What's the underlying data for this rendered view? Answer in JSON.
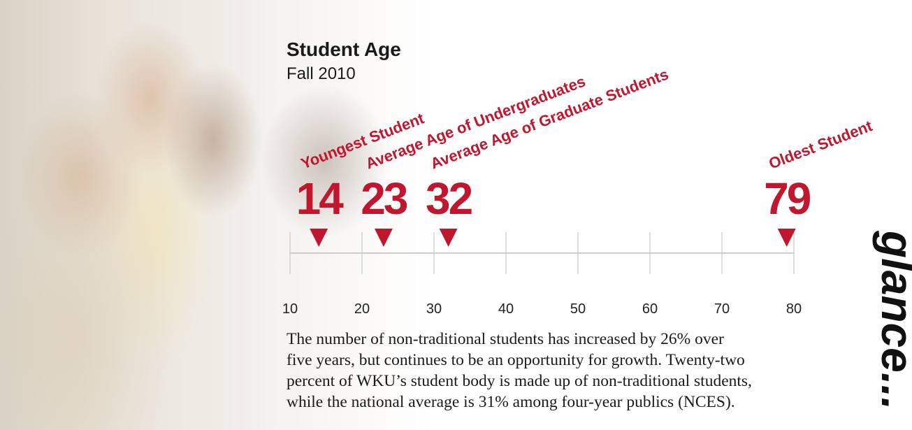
{
  "chart_data": {
    "type": "number-line",
    "title": "Student Age",
    "subtitle": "Fall 2010",
    "categories": [
      "Youngest Student",
      "Average Age of Undergraduates",
      "Average Age of Graduate Students",
      "Oldest Student"
    ],
    "values": [
      14,
      23,
      32,
      79
    ],
    "color": "#c0172f",
    "xlim": [
      10,
      80
    ],
    "xticks": [
      10,
      20,
      30,
      40,
      50,
      60,
      70,
      80
    ],
    "grid": true,
    "annotation": [
      "The number of non-traditional students has increased by 26% over",
      "five years, but continues to be an opportunity for growth. Twenty-two",
      "percent of WKU’s student body is made up of non-traditional students,",
      "while the national average is 31% among four-year publics (NCES)."
    ],
    "side_text": "glance..."
  }
}
